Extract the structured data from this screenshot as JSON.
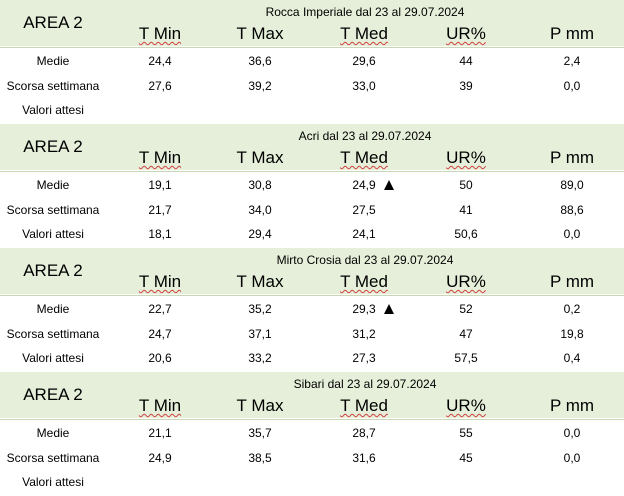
{
  "columns": [
    "T Min",
    "T Max",
    "T Med",
    "UR%",
    "P mm"
  ],
  "row_labels": [
    "Medie",
    "Scorsa settimana",
    "Valori attesi"
  ],
  "blocks": [
    {
      "area": "AREA 2",
      "station": "Rocca Imperiale  dal 23 al 29.07.2024",
      "rows": [
        [
          "24,4",
          "36,6",
          "29,6",
          "44",
          "2,4"
        ],
        [
          "27,6",
          "39,2",
          "33,0",
          "39",
          "0,0"
        ],
        [
          "",
          "",
          "",
          "",
          ""
        ]
      ]
    },
    {
      "area": "AREA 2",
      "station": "Acri dal 23 al 29.07.2024",
      "rows": [
        [
          "19,1",
          "30,8",
          "24,9",
          "50",
          "89,0"
        ],
        [
          "21,7",
          "34,0",
          "27,5",
          "41",
          "88,6"
        ],
        [
          "18,1",
          "29,4",
          "24,1",
          "50,6",
          "0,0"
        ]
      ]
    },
    {
      "area": "AREA 2",
      "station": "Mirto Crosia dal 23 al 29.07.2024",
      "rows": [
        [
          "22,7",
          "35,2",
          "29,3",
          "52",
          "0,2"
        ],
        [
          "24,7",
          "37,1",
          "31,2",
          "47",
          "19,8"
        ],
        [
          "20,6",
          "33,2",
          "27,3",
          "57,5",
          "0,4"
        ]
      ]
    },
    {
      "area": "AREA 2",
      "station": "Sibari dal 23 al 29.07.2024",
      "rows": [
        [
          "21,1",
          "35,7",
          "28,7",
          "55",
          "0,0"
        ],
        [
          "24,9",
          "38,5",
          "31,6",
          "45",
          "0,0"
        ],
        [
          "",
          "",
          "",
          "",
          ""
        ]
      ]
    }
  ],
  "trend_icons": [
    "up-triangle-icon",
    "up-triangle-icon"
  ],
  "colors": {
    "header_bg": "#e6efd9",
    "spellcheck_underline": "#d04040"
  }
}
